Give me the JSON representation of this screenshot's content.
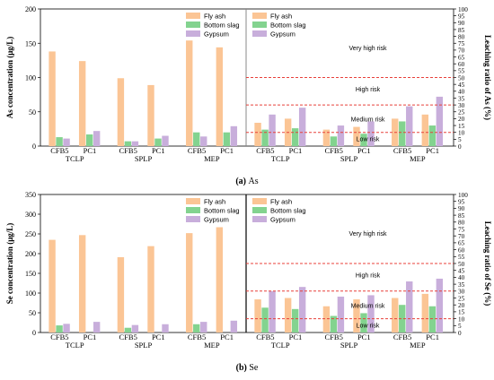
{
  "colors": {
    "fly_ash": "#FBC595",
    "bottom_slag": "#83D38F",
    "gypsum": "#C8AEDB",
    "risk_line": "#E8403A"
  },
  "legend": [
    "Fly ash",
    "Bottom slag",
    "Gypsum"
  ],
  "risk_labels": [
    "Very high risk",
    "High risk",
    "Medium risk",
    "Low risk"
  ],
  "chart_data": [
    {
      "type": "bar",
      "panel": "(a)",
      "caption_letter": "(a)",
      "caption_text": "As",
      "ylabel_left": "As concentration (μg/L)",
      "ylabel_right": "Leaching ratio of As (%)",
      "ylim_left": [
        0,
        200
      ],
      "yticks_left": [
        "0",
        "50",
        "100",
        "150",
        "200"
      ],
      "ylim_right": [
        0,
        100
      ],
      "yticks_right": [
        "0",
        "5",
        "10",
        "15",
        "20",
        "25",
        "30",
        "35",
        "40",
        "45",
        "50",
        "55",
        "60",
        "65",
        "70",
        "75",
        "80",
        "85",
        "90",
        "95",
        "100"
      ],
      "groups": [
        "TCLP",
        "SPLP",
        "MEP"
      ],
      "subcategories": [
        "CFB5",
        "PC1"
      ],
      "series": [
        {
          "name": "Fly ash",
          "concentration": [
            138,
            124,
            99,
            89,
            154,
            144
          ],
          "ratio": [
            17,
            20,
            12,
            14,
            20,
            23
          ]
        },
        {
          "name": "Bottom slag",
          "concentration": [
            13,
            17,
            7,
            11,
            20,
            20
          ],
          "ratio": [
            12,
            13,
            7,
            9,
            18,
            15
          ]
        },
        {
          "name": "Gypsum",
          "concentration": [
            11,
            22,
            7,
            15,
            14,
            29
          ],
          "ratio": [
            23,
            28,
            15,
            18,
            29,
            36
          ]
        }
      ],
      "risk_thresholds": [
        10,
        30,
        50
      ]
    },
    {
      "type": "bar",
      "panel": "(b)",
      "caption_letter": "(b)",
      "caption_text": "Se",
      "ylabel_left": "Se concentration (μg/L)",
      "ylabel_right": "Leaching ratio of Se (%)",
      "ylim_left": [
        0,
        350
      ],
      "yticks_left": [
        "0",
        "50",
        "100",
        "150",
        "200",
        "250",
        "300",
        "350"
      ],
      "ylim_right": [
        0,
        100
      ],
      "yticks_right": [
        "0",
        "5",
        "10",
        "15",
        "20",
        "25",
        "30",
        "35",
        "40",
        "45",
        "50",
        "55",
        "60",
        "65",
        "70",
        "75",
        "80",
        "85",
        "90",
        "95",
        "100"
      ],
      "groups": [
        "TCLP",
        "SPLP",
        "MEP"
      ],
      "subcategories": [
        "CFB5",
        "PC1"
      ],
      "series": [
        {
          "name": "Fly ash",
          "concentration": [
            235,
            247,
            191,
            219,
            252,
            267
          ],
          "ratio": [
            24,
            25,
            19,
            24,
            25,
            28
          ]
        },
        {
          "name": "Bottom slag",
          "concentration": [
            18,
            0,
            12,
            0,
            21,
            0
          ],
          "ratio": [
            18,
            17,
            12,
            14,
            20,
            19
          ]
        },
        {
          "name": "Gypsum",
          "concentration": [
            22,
            27,
            19,
            21,
            27,
            30
          ],
          "ratio": [
            30,
            33,
            26,
            27,
            37,
            39
          ]
        }
      ],
      "risk_thresholds": [
        10,
        30,
        50
      ]
    }
  ]
}
